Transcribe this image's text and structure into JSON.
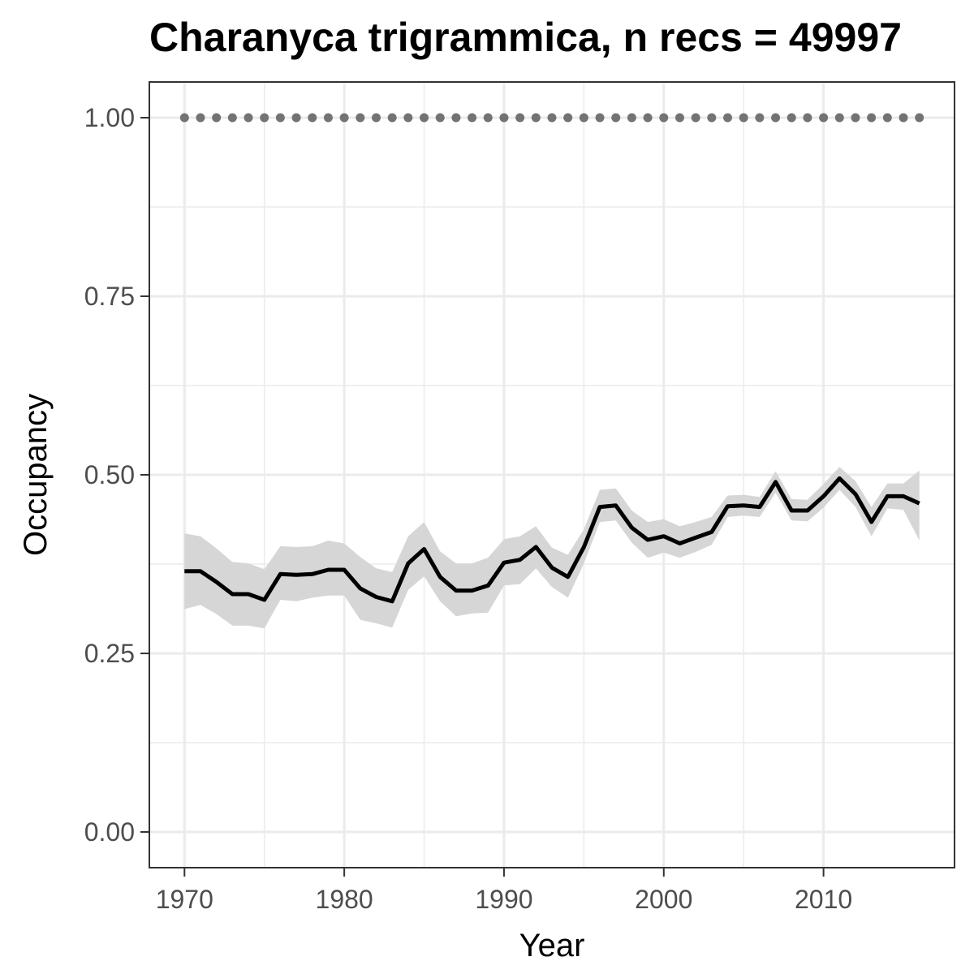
{
  "chart_data": {
    "type": "line",
    "title": "Charanyca trigrammica, n recs = 49997",
    "xlabel": "Year",
    "ylabel": "Occupancy",
    "xlim": [
      1967.8,
      2018.2
    ],
    "ylim": [
      -0.05,
      1.05
    ],
    "x_ticks": [
      1970,
      1980,
      1990,
      2000,
      2010
    ],
    "x_tick_labels": [
      "1970",
      "1980",
      "1990",
      "2000",
      "2010"
    ],
    "y_ticks": [
      0,
      0.25,
      0.5,
      0.75,
      1
    ],
    "y_tick_labels": [
      "0.00",
      "0.25",
      "0.50",
      "0.75",
      "1.00"
    ],
    "grid": true,
    "colors": {
      "line": "#000000",
      "ribbon": "#d6d6d6",
      "points": "#737373",
      "grid": "#ebebeb",
      "panel_border": "#333333",
      "tick_text": "#4d4d4d"
    },
    "x": [
      1970,
      1971,
      1972,
      1973,
      1974,
      1975,
      1976,
      1977,
      1978,
      1979,
      1980,
      1981,
      1982,
      1983,
      1984,
      1985,
      1986,
      1987,
      1988,
      1989,
      1990,
      1991,
      1992,
      1993,
      1994,
      1995,
      1996,
      1997,
      1998,
      1999,
      2000,
      2001,
      2002,
      2003,
      2004,
      2005,
      2006,
      2007,
      2008,
      2009,
      2010,
      2011,
      2012,
      2013,
      2014,
      2015,
      2016
    ],
    "series": [
      {
        "type": "line",
        "values": [
          0.365,
          0.365,
          0.35,
          0.333,
          0.333,
          0.325,
          0.361,
          0.36,
          0.361,
          0.367,
          0.367,
          0.341,
          0.329,
          0.323,
          0.376,
          0.396,
          0.357,
          0.338,
          0.338,
          0.345,
          0.377,
          0.381,
          0.399,
          0.37,
          0.357,
          0.399,
          0.455,
          0.457,
          0.426,
          0.409,
          0.414,
          0.404,
          0.412,
          0.42,
          0.456,
          0.457,
          0.455,
          0.49,
          0.45,
          0.45,
          0.47,
          0.495,
          0.473,
          0.434,
          0.47,
          0.47,
          0.46
        ],
        "lower": [
          0.312,
          0.318,
          0.305,
          0.289,
          0.289,
          0.285,
          0.325,
          0.323,
          0.328,
          0.331,
          0.331,
          0.297,
          0.292,
          0.286,
          0.339,
          0.358,
          0.323,
          0.302,
          0.306,
          0.307,
          0.345,
          0.347,
          0.369,
          0.343,
          0.328,
          0.376,
          0.434,
          0.436,
          0.405,
          0.384,
          0.391,
          0.384,
          0.392,
          0.402,
          0.441,
          0.443,
          0.441,
          0.475,
          0.436,
          0.435,
          0.454,
          0.479,
          0.455,
          0.414,
          0.453,
          0.451,
          0.408
        ],
        "upper": [
          0.418,
          0.414,
          0.397,
          0.378,
          0.376,
          0.368,
          0.4,
          0.399,
          0.4,
          0.408,
          0.404,
          0.385,
          0.369,
          0.364,
          0.414,
          0.434,
          0.393,
          0.376,
          0.376,
          0.384,
          0.41,
          0.414,
          0.428,
          0.398,
          0.388,
          0.424,
          0.479,
          0.481,
          0.45,
          0.434,
          0.438,
          0.428,
          0.434,
          0.441,
          0.471,
          0.472,
          0.469,
          0.505,
          0.466,
          0.465,
          0.487,
          0.511,
          0.491,
          0.455,
          0.488,
          0.488,
          0.506
        ]
      },
      {
        "type": "points",
        "values": [
          1,
          1,
          1,
          1,
          1,
          1,
          1,
          1,
          1,
          1,
          1,
          1,
          1,
          1,
          1,
          1,
          1,
          1,
          1,
          1,
          1,
          1,
          1,
          1,
          1,
          1,
          1,
          1,
          1,
          1,
          1,
          1,
          1,
          1,
          1,
          1,
          1,
          1,
          1,
          1,
          1,
          1,
          1,
          1,
          1,
          1,
          1
        ]
      }
    ]
  }
}
